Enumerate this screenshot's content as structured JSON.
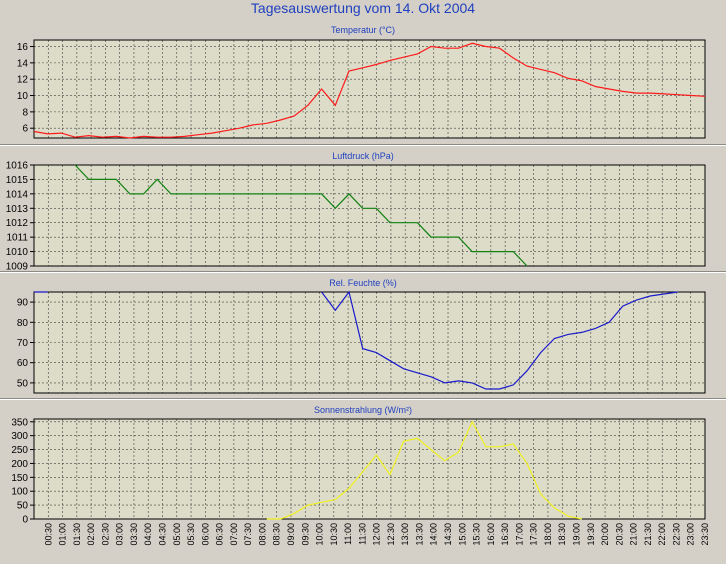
{
  "main_title": "Tagesauswertung vom 14. Okt 2004",
  "colors": {
    "temperature": "#ff1a1a",
    "pressure": "#108010",
    "humidity": "#1a1acc",
    "radiation": "#f0f020",
    "plot_bg": "#dcdcc8",
    "grid": "#404040"
  },
  "time_labels": [
    "00:30",
    "01:00",
    "01:30",
    "02:00",
    "02:30",
    "03:00",
    "03:30",
    "04:00",
    "04:30",
    "05:00",
    "05:30",
    "06:00",
    "06:30",
    "07:00",
    "07:30",
    "08:00",
    "08:30",
    "09:00",
    "09:30",
    "10:00",
    "10:30",
    "11:00",
    "11:30",
    "12:00",
    "12:30",
    "13:00",
    "13:30",
    "14:00",
    "14:30",
    "15:00",
    "15:30",
    "16:00",
    "16:30",
    "17:00",
    "17:30",
    "18:00",
    "18:30",
    "19:00",
    "19:30",
    "20:00",
    "20:30",
    "21:00",
    "21:30",
    "22:00",
    "22:30",
    "23:00",
    "23:30"
  ],
  "chart_data": [
    {
      "type": "line",
      "title": "Temperatur (°C)",
      "yticks": [
        6,
        8,
        10,
        12,
        14,
        16
      ],
      "ylim": [
        4.8,
        16.8
      ],
      "grid": true,
      "series": [
        {
          "values": [
            5.6,
            5.3,
            5.4,
            4.9,
            5.1,
            4.9,
            5.0,
            4.8,
            5.0,
            4.9,
            4.9,
            5.0,
            5.2,
            5.4,
            5.7,
            6.0,
            6.4,
            6.6,
            7.0,
            7.5,
            8.8,
            10.8,
            8.8,
            13.0,
            13.4,
            13.8,
            14.3,
            14.7,
            15.1,
            16.0,
            15.8,
            15.8,
            16.4,
            16.0,
            15.8,
            14.6,
            13.6,
            13.2,
            12.8,
            12.1,
            11.8,
            11.1,
            10.8,
            10.5,
            10.3,
            10.3,
            10.2,
            10.1,
            10.0,
            9.9
          ]
        }
      ]
    },
    {
      "type": "line",
      "title": "Luftdruck (hPa)",
      "yticks": [
        1009,
        1010,
        1011,
        1012,
        1013,
        1014,
        1015,
        1016
      ],
      "ylim": [
        1009,
        1016
      ],
      "grid": true,
      "series": [
        {
          "values": [
            null,
            null,
            null,
            1016,
            1015,
            1015,
            1015,
            1014,
            1014,
            1015,
            1014,
            1014,
            1014,
            1014,
            1014,
            1014,
            1014,
            1014,
            1014,
            1014,
            1014,
            1014,
            1013,
            1014,
            1013,
            1013,
            1012,
            1012,
            1012,
            1011,
            1011,
            1011,
            1010,
            1010,
            1010,
            1010,
            1009,
            null,
            null,
            null,
            null,
            null,
            null,
            null,
            null,
            null,
            null,
            null,
            null,
            null
          ]
        }
      ]
    },
    {
      "type": "line",
      "title": "Rel. Feuchte (%)",
      "yticks": [
        50,
        60,
        70,
        80,
        90
      ],
      "ylim": [
        45,
        95
      ],
      "grid": true,
      "series": [
        {
          "values": [
            95,
            95,
            null,
            null,
            null,
            null,
            null,
            null,
            null,
            null,
            null,
            null,
            null,
            null,
            null,
            null,
            null,
            null,
            null,
            null,
            null,
            95,
            86,
            95,
            67,
            65,
            61,
            57,
            55,
            53,
            50,
            51,
            50,
            47,
            47,
            49,
            56,
            65,
            72,
            74,
            75,
            77,
            80,
            88,
            91,
            93,
            94,
            95,
            null,
            null
          ]
        }
      ]
    },
    {
      "type": "line",
      "title": "Sonnenstrahlung (W/m²)",
      "yticks": [
        0,
        50,
        100,
        150,
        200,
        250,
        300,
        350
      ],
      "ylim": [
        0,
        360
      ],
      "grid": true,
      "series": [
        {
          "values": [
            null,
            null,
            null,
            null,
            null,
            null,
            null,
            null,
            null,
            null,
            null,
            null,
            null,
            null,
            null,
            null,
            null,
            0,
            0,
            20,
            50,
            60,
            70,
            110,
            170,
            230,
            160,
            280,
            290,
            250,
            210,
            240,
            350,
            260,
            260,
            270,
            200,
            90,
            40,
            10,
            0,
            null,
            null,
            null,
            null,
            null,
            null,
            null,
            null,
            null
          ]
        }
      ]
    }
  ]
}
